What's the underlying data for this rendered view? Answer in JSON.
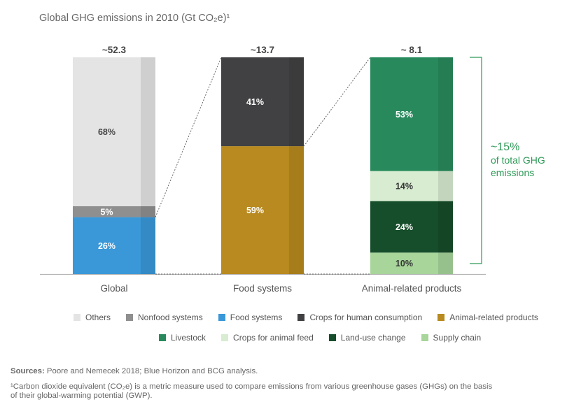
{
  "title": "Global GHG emissions in 2010 (Gt CO₂e)¹",
  "chart_data": {
    "type": "stacked-bar",
    "title": "Global GHG emissions in 2010 (Gt CO₂e)¹",
    "unit": "Gt CO₂e",
    "bars": [
      {
        "label": "Global",
        "total_label": "~52.3",
        "total": 52.3,
        "segments": [
          {
            "name": "Food systems",
            "percent": 26,
            "label": "26%",
            "color": "#3a98d8",
            "text_color": "#ffffff"
          },
          {
            "name": "Nonfood systems",
            "percent": 5,
            "label": "5%",
            "color": "#8f8f8f",
            "text_color": "#ffffff"
          },
          {
            "name": "Others",
            "percent": 68,
            "label": "68%",
            "color": "#e4e4e4",
            "text_color": "#444444"
          }
        ]
      },
      {
        "label": "Food systems",
        "total_label": "~13.7",
        "total": 13.7,
        "segments": [
          {
            "name": "Animal-related products",
            "percent": 59,
            "label": "59%",
            "color": "#b88a1f",
            "text_color": "#ffffff"
          },
          {
            "name": "Crops for human consumption",
            "percent": 41,
            "label": "41%",
            "color": "#414143",
            "text_color": "#ffffff"
          }
        ]
      },
      {
        "label": "Animal-related products",
        "total_label": "~ 8.1",
        "total": 8.1,
        "segments": [
          {
            "name": "Supply chain",
            "percent": 10,
            "label": "10%",
            "color": "#a7d59a",
            "text_color": "#333333"
          },
          {
            "name": "Land-use change",
            "percent": 24,
            "label": "24%",
            "color": "#164d2a",
            "text_color": "#ffffff"
          },
          {
            "name": "Crops for animal feed",
            "percent": 14,
            "label": "14%",
            "color": "#d7ecd0",
            "text_color": "#333333"
          },
          {
            "name": "Livestock",
            "percent": 53,
            "label": "53%",
            "color": "#288a5c",
            "text_color": "#ffffff"
          }
        ]
      }
    ],
    "legend": [
      {
        "label": "Others",
        "color": "#e4e4e4"
      },
      {
        "label": "Nonfood systems",
        "color": "#8f8f8f"
      },
      {
        "label": "Food systems",
        "color": "#3a98d8"
      },
      {
        "label": "Crops for human consumption",
        "color": "#414143"
      },
      {
        "label": "Animal-related products",
        "color": "#b88a1f"
      },
      {
        "label": "Livestock",
        "color": "#288a5c"
      },
      {
        "label": "Crops for animal feed",
        "color": "#d7ecd0"
      },
      {
        "label": "Land-use change",
        "color": "#164d2a"
      },
      {
        "label": "Supply chain",
        "color": "#a7d59a"
      }
    ],
    "callout": {
      "line1": "~15%",
      "line2": "of total GHG",
      "line3": "emissions",
      "color": "#2e9a57"
    }
  },
  "footnotes": {
    "sources_label": "Sources:",
    "sources_text": " Poore and Nemecek 2018; Blue Horizon and BCG analysis.",
    "note_line1": "¹Carbon dioxide equivalent (CO₂e) is a metric measure used to compare emissions from various greenhouse gases (GHGs) on the basis",
    "note_line2": "of their global-warming potential (GWP)."
  }
}
